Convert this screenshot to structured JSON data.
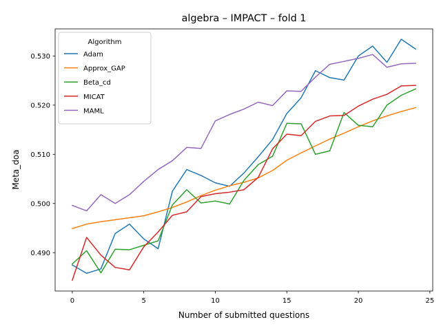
{
  "chart_data": {
    "type": "line",
    "title": "algebra – IMPACT – fold 1",
    "xlabel": "Number of submitted questions",
    "ylabel": "Meta_doa",
    "xlim": [
      -1.2,
      25.2
    ],
    "ylim": [
      0.4822,
      0.5355
    ],
    "x_ticks": [
      0,
      5,
      10,
      15,
      20,
      25
    ],
    "x_tick_labels": [
      "0",
      "5",
      "10",
      "15",
      "20",
      "25"
    ],
    "y_ticks": [
      0.49,
      0.5,
      0.51,
      0.52,
      0.53
    ],
    "y_tick_labels": [
      "0.490",
      "0.500",
      "0.510",
      "0.520",
      "0.530"
    ],
    "grid": false,
    "legend": {
      "title": "Algorithm",
      "placement": "upper-left"
    },
    "x": [
      0,
      1,
      2,
      3,
      4,
      5,
      6,
      7,
      8,
      9,
      10,
      11,
      12,
      13,
      14,
      15,
      16,
      17,
      18,
      19,
      20,
      21,
      22,
      23,
      24
    ],
    "series": [
      {
        "name": "Adam",
        "color": "#1f77b4",
        "values": [
          0.4875,
          0.4858,
          0.4867,
          0.4939,
          0.4958,
          0.4928,
          0.4908,
          0.5025,
          0.5069,
          0.5057,
          0.5042,
          0.5035,
          0.5062,
          0.5095,
          0.513,
          0.5183,
          0.5215,
          0.527,
          0.5256,
          0.5251,
          0.53,
          0.532,
          0.5287,
          0.5334,
          0.5314
        ]
      },
      {
        "name": "Approx_GAP",
        "color": "#ff7f0e",
        "values": [
          0.4949,
          0.4958,
          0.4963,
          0.4967,
          0.4971,
          0.4975,
          0.4983,
          0.4992,
          0.5003,
          0.5016,
          0.5027,
          0.5036,
          0.5043,
          0.5052,
          0.5067,
          0.5088,
          0.5103,
          0.5117,
          0.5131,
          0.5143,
          0.5156,
          0.5168,
          0.5178,
          0.5187,
          0.5195
        ]
      },
      {
        "name": "Beta_cd",
        "color": "#2ca02c",
        "values": [
          0.4877,
          0.4904,
          0.4859,
          0.4907,
          0.4906,
          0.4915,
          0.4924,
          0.4997,
          0.5028,
          0.5001,
          0.5005,
          0.4999,
          0.5047,
          0.5079,
          0.5096,
          0.5163,
          0.5162,
          0.51,
          0.5107,
          0.5185,
          0.5159,
          0.5156,
          0.52,
          0.522,
          0.5233
        ]
      },
      {
        "name": "MICAT",
        "color": "#d62728",
        "values": [
          0.4844,
          0.4931,
          0.4895,
          0.487,
          0.4865,
          0.4912,
          0.4942,
          0.4976,
          0.4983,
          0.5014,
          0.502,
          0.5023,
          0.5028,
          0.5053,
          0.5111,
          0.5141,
          0.5138,
          0.5167,
          0.5178,
          0.5179,
          0.5198,
          0.5212,
          0.5222,
          0.5239,
          0.524
        ]
      },
      {
        "name": "MAML",
        "color": "#9467bd",
        "values": [
          0.4996,
          0.4985,
          0.5018,
          0.5,
          0.5018,
          0.5045,
          0.5069,
          0.5087,
          0.5114,
          0.5112,
          0.5168,
          0.5181,
          0.5192,
          0.5206,
          0.5199,
          0.5229,
          0.5228,
          0.5257,
          0.5283,
          0.5289,
          0.5295,
          0.5303,
          0.5277,
          0.5284,
          0.5285
        ]
      }
    ]
  }
}
